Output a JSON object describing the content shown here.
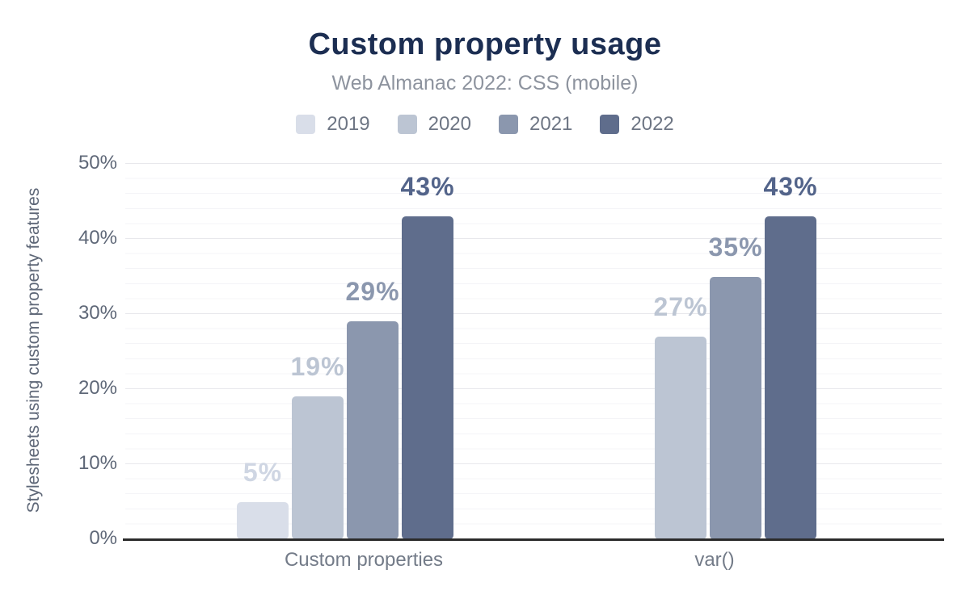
{
  "header": {
    "title": "Custom property usage",
    "subtitle": "Web Almanac 2022: CSS (mobile)"
  },
  "chart_data": {
    "type": "bar",
    "title": "Custom property usage",
    "subtitle": "Web Almanac 2022: CSS (mobile)",
    "xlabel": "",
    "ylabel": "Stylesheets using custom property features",
    "ylim": [
      0,
      50
    ],
    "ytick_labels": [
      "0%",
      "10%",
      "20%",
      "30%",
      "40%",
      "50%"
    ],
    "grid": "horizontal; minor lines every 2%, major lines every 10%",
    "legend_position": "top",
    "categories": [
      "Custom properties",
      "var()"
    ],
    "series": [
      {
        "name": "2019",
        "color": "#d9dee9",
        "label_color": "#cfd6e3",
        "values": [
          5,
          null
        ],
        "labels": [
          "5%",
          null
        ]
      },
      {
        "name": "2020",
        "color": "#bcc5d3",
        "label_color": "#bcc5d3",
        "values": [
          19,
          27
        ],
        "labels": [
          "19%",
          "27%"
        ]
      },
      {
        "name": "2021",
        "color": "#8b97ae",
        "label_color": "#8b97ae",
        "values": [
          29,
          35
        ],
        "labels": [
          "29%",
          "35%"
        ]
      },
      {
        "name": "2022",
        "color": "#5f6d8c",
        "label_color": "#53648a",
        "values": [
          43,
          43
        ],
        "labels": [
          "43%",
          "43%"
        ]
      }
    ],
    "colors": {
      "title": "#1c2e52",
      "subtitle": "#8d939e",
      "axis_text": "#5f6878",
      "x_label_text": "#737b88",
      "axis_line": "#2b2b2b",
      "grid_major": "#e8e8ec",
      "grid_minor": "#f4f4f7",
      "background": "#ffffff"
    }
  }
}
